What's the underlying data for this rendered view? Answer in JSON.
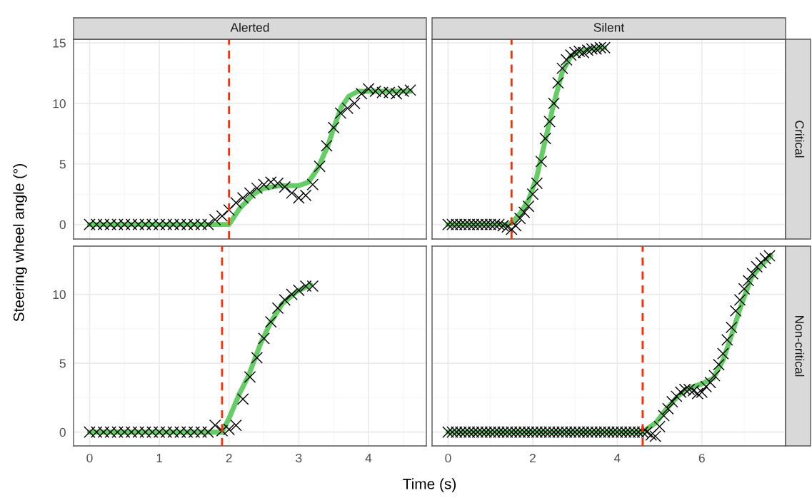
{
  "chart_data": [
    {
      "type": "scatter",
      "title": "Alerted",
      "ylabel": "Steering wheel angle (°)",
      "xlim": [
        -0.23,
        4.83
      ],
      "xticks": [
        0,
        1,
        2,
        3,
        4
      ],
      "ylim": [
        -1.2,
        15.3
      ],
      "yticks": [
        0,
        5,
        10,
        15
      ],
      "grid": true,
      "tick_labels": "y",
      "series": [
        {
          "type": "line",
          "color": "#66cc66",
          "line_style": "solid",
          "x": [
            0,
            2.0,
            2.15,
            2.35,
            2.5,
            2.73,
            3.0,
            3.14,
            3.27,
            3.41,
            3.51,
            3.61,
            3.72,
            3.85,
            4.06,
            4.6
          ],
          "values": [
            0,
            0,
            1.3,
            2.5,
            3.0,
            3.2,
            3.2,
            3.5,
            4.6,
            6.4,
            8.1,
            9.7,
            10.6,
            11.0,
            11.0,
            11.0
          ]
        },
        {
          "color": "#000000",
          "marker": "cross",
          "x": [
            0,
            0.1,
            0.2,
            0.3,
            0.4,
            0.5,
            0.6,
            0.7,
            0.8,
            0.9,
            1.0,
            1.1,
            1.2,
            1.3,
            1.4,
            1.5,
            1.6,
            1.7,
            1.8,
            1.9,
            2.0,
            2.1,
            2.2,
            2.3,
            2.4,
            2.5,
            2.6,
            2.7,
            2.8,
            2.9,
            3.0,
            3.1,
            3.2,
            3.3,
            3.4,
            3.5,
            3.6,
            3.7,
            3.8,
            3.9,
            4.0,
            4.1,
            4.2,
            4.3,
            4.4,
            4.5,
            4.6
          ],
          "values": [
            0,
            0,
            0,
            0,
            0,
            0,
            0,
            0,
            0,
            0,
            0,
            0,
            0,
            0,
            0,
            0,
            0,
            0,
            0.4,
            0.7,
            1.2,
            1.8,
            2.2,
            2.6,
            3.0,
            3.3,
            3.5,
            3.4,
            3.1,
            2.6,
            2.2,
            2.4,
            3.3,
            4.8,
            6.5,
            8.0,
            9.2,
            9.6,
            10.0,
            10.8,
            11.2,
            11.0,
            10.9,
            10.9,
            10.8,
            11.0,
            11.1
          ]
        }
      ],
      "ref_lines": [
        {
          "axis": "x",
          "value": 2.0,
          "color": "#ff2a00",
          "line_style": "dashed"
        }
      ]
    },
    {
      "type": "scatter",
      "title": "Silent",
      "annotations": [
        "Critical"
      ],
      "xlim": [
        -0.38,
        7.98
      ],
      "xticks": [
        0,
        2,
        4,
        6
      ],
      "ylim": [
        -1.2,
        15.3
      ],
      "yticks": [
        0,
        5,
        10,
        15
      ],
      "grid": true,
      "tick_labels": false,
      "series": [
        {
          "type": "line",
          "color": "#66cc66",
          "line_style": "solid",
          "x": [
            0,
            1.4,
            1.5,
            1.7,
            1.9,
            2.1,
            2.3,
            2.5,
            2.7,
            2.9,
            3.1,
            3.4,
            3.7
          ],
          "values": [
            0,
            0,
            0.1,
            0.9,
            2.0,
            4.0,
            7.0,
            10.0,
            12.6,
            13.9,
            14.3,
            14.5,
            14.6
          ]
        },
        {
          "color": "#000000",
          "marker": "cross",
          "x": [
            0,
            0.1,
            0.2,
            0.3,
            0.4,
            0.5,
            0.6,
            0.7,
            0.8,
            0.9,
            1.0,
            1.1,
            1.2,
            1.3,
            1.4,
            1.5,
            1.6,
            1.7,
            1.8,
            1.9,
            2.0,
            2.1,
            2.2,
            2.3,
            2.4,
            2.5,
            2.6,
            2.7,
            2.8,
            2.9,
            3.0,
            3.1,
            3.2,
            3.3,
            3.4,
            3.5,
            3.6,
            3.7
          ],
          "values": [
            0,
            0,
            0,
            0,
            0,
            0,
            0,
            0,
            0,
            0,
            0,
            0,
            0,
            -0.1,
            -0.2,
            -0.4,
            -0.1,
            0.5,
            1.0,
            1.5,
            2.5,
            3.4,
            5.2,
            7.1,
            8.5,
            10.0,
            11.7,
            12.9,
            13.6,
            14.0,
            14.2,
            14.3,
            14.2,
            14.4,
            14.5,
            14.5,
            14.6,
            14.6
          ]
        }
      ],
      "ref_lines": [
        {
          "axis": "x",
          "value": 1.5,
          "color": "#ff2a00",
          "line_style": "dashed"
        }
      ]
    },
    {
      "type": "scatter",
      "xlabel": "Time (s)",
      "xlim": [
        -0.23,
        4.83
      ],
      "xticks": [
        0,
        1,
        2,
        3,
        4
      ],
      "ylim": [
        -1.0,
        13.5
      ],
      "yticks": [
        0,
        5,
        10
      ],
      "grid": true,
      "series": [
        {
          "type": "line",
          "color": "#66cc66",
          "line_style": "solid",
          "x": [
            0,
            1.9,
            2.0,
            2.15,
            2.28,
            2.45,
            2.59,
            2.76,
            2.97,
            3.17
          ],
          "values": [
            0,
            0,
            1.0,
            2.8,
            4.1,
            6.4,
            7.9,
            9.3,
            10.2,
            10.7
          ]
        },
        {
          "color": "#000000",
          "marker": "cross",
          "x": [
            0,
            0.1,
            0.2,
            0.3,
            0.4,
            0.5,
            0.6,
            0.7,
            0.8,
            0.9,
            1.0,
            1.1,
            1.2,
            1.3,
            1.4,
            1.5,
            1.6,
            1.7,
            1.8,
            1.9,
            2.0,
            2.1,
            2.2,
            2.3,
            2.4,
            2.5,
            2.6,
            2.7,
            2.8,
            2.9,
            3.0,
            3.1,
            3.2
          ],
          "values": [
            0,
            0,
            0,
            0,
            0,
            0,
            0,
            0,
            0,
            0,
            0,
            0,
            0,
            0,
            0,
            0,
            0,
            0,
            0.5,
            0.1,
            0.2,
            0.5,
            2.4,
            4.0,
            5.4,
            6.8,
            8.0,
            9.0,
            9.6,
            10.0,
            10.3,
            10.6,
            10.6
          ]
        }
      ],
      "ref_lines": [
        {
          "axis": "x",
          "value": 1.9,
          "color": "#ff2a00",
          "line_style": "dashed"
        }
      ]
    },
    {
      "type": "scatter",
      "annotations": [
        "Non-critical"
      ],
      "xlim": [
        -0.38,
        7.98
      ],
      "xticks": [
        0,
        2,
        4,
        6
      ],
      "ylim": [
        -1.0,
        13.5
      ],
      "yticks": [
        0,
        5,
        10
      ],
      "grid": true,
      "tick_labels": "x",
      "series": [
        {
          "type": "line",
          "color": "#66cc66",
          "line_style": "solid",
          "x": [
            0,
            4.6,
            4.92,
            5.14,
            5.43,
            5.71,
            5.99,
            6.27,
            6.5,
            6.72,
            6.95,
            7.17,
            7.4,
            7.63
          ],
          "values": [
            0,
            0,
            0.7,
            1.6,
            2.6,
            3.2,
            3.5,
            3.9,
            5.2,
            7.2,
            9.4,
            11.2,
            12.1,
            12.8
          ]
        },
        {
          "color": "#000000",
          "marker": "cross",
          "x": [
            0,
            0.1,
            0.2,
            0.3,
            0.4,
            0.5,
            0.6,
            0.7,
            0.8,
            0.9,
            1.0,
            1.1,
            1.2,
            1.3,
            1.4,
            1.5,
            1.6,
            1.7,
            1.8,
            1.9,
            2.0,
            2.1,
            2.2,
            2.3,
            2.4,
            2.5,
            2.6,
            2.7,
            2.8,
            2.9,
            3.0,
            3.1,
            3.2,
            3.3,
            3.4,
            3.5,
            3.6,
            3.7,
            3.8,
            3.9,
            4.0,
            4.1,
            4.2,
            4.3,
            4.4,
            4.5,
            4.6,
            4.7,
            4.8,
            4.9,
            5.0,
            5.1,
            5.2,
            5.3,
            5.4,
            5.5,
            5.6,
            5.7,
            5.8,
            5.9,
            6.0,
            6.1,
            6.2,
            6.3,
            6.4,
            6.5,
            6.6,
            6.7,
            6.8,
            6.9,
            7.0,
            7.1,
            7.2,
            7.3,
            7.4,
            7.5,
            7.6
          ],
          "values": [
            0,
            0,
            0,
            0,
            0,
            0,
            0,
            0,
            0,
            0,
            0,
            0,
            0,
            0,
            0,
            0,
            0,
            0,
            0,
            0,
            0,
            0,
            0,
            0,
            0,
            0,
            0,
            0,
            0,
            0,
            0,
            0,
            0,
            0,
            0,
            0,
            0,
            0,
            0,
            0,
            0,
            0,
            0,
            0,
            0,
            0,
            0,
            0,
            -0.2,
            -0.3,
            0.4,
            1.2,
            1.7,
            2.2,
            2.6,
            2.9,
            3.1,
            3.1,
            3.0,
            2.8,
            2.9,
            3.3,
            3.6,
            4.1,
            4.9,
            5.7,
            6.7,
            7.6,
            8.8,
            9.6,
            10.4,
            11.0,
            11.5,
            12.0,
            12.3,
            12.6,
            12.8
          ]
        }
      ],
      "ref_lines": [
        {
          "axis": "x",
          "value": 4.6,
          "color": "#ff2a00",
          "line_style": "dashed"
        }
      ]
    }
  ]
}
